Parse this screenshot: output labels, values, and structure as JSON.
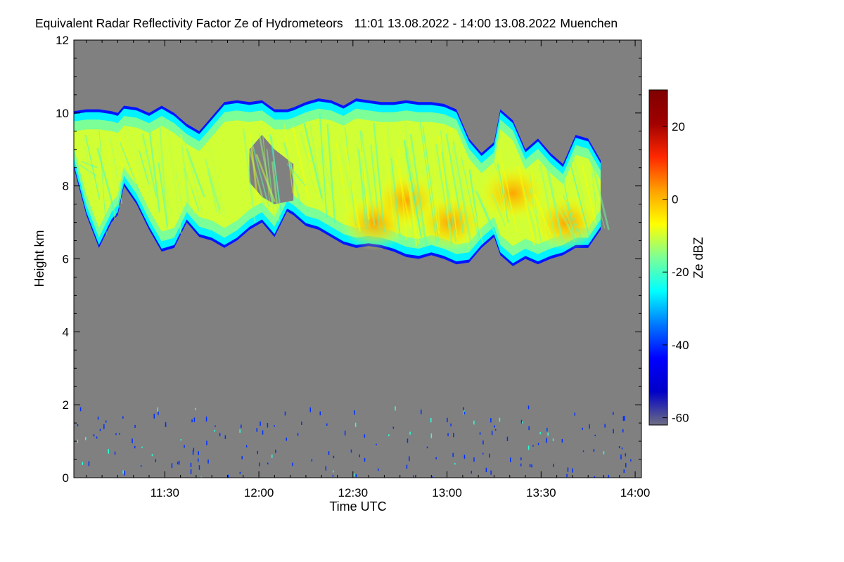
{
  "chart_data": {
    "type": "heatmap",
    "title": "Equivalent Radar Reflectivity Factor Ze of Hydrometeors",
    "time_range": "11:01 13.08.2022 - 14:00 13.08.2022",
    "location": "Muenchen",
    "xlabel": "Time UTC",
    "ylabel": "Height km",
    "xlim_minutes": [
      0,
      181
    ],
    "xlim_note": "minutes since 11:01 UTC",
    "x_ticks": [
      {
        "label": "11:30",
        "value": 29
      },
      {
        "label": "12:00",
        "value": 59
      },
      {
        "label": "12:30",
        "value": 89
      },
      {
        "label": "13:00",
        "value": 119
      },
      {
        "label": "13:30",
        "value": 149
      },
      {
        "label": "14:00",
        "value": 179
      }
    ],
    "ylim": [
      0,
      12
    ],
    "y_ticks": [
      0,
      2,
      4,
      6,
      8,
      10,
      12
    ],
    "background_color": "#808080",
    "colorbar": {
      "label": "Ze dBZ",
      "range": [
        -62,
        30
      ],
      "ticks": [
        20,
        0,
        -20,
        -40,
        -60
      ],
      "colors": [
        "#6e6e82",
        "#0000c8",
        "#0000ff",
        "#0078ff",
        "#00ffff",
        "#7cff96",
        "#ffff00",
        "#ffa000",
        "#ff2800",
        "#a00000",
        "#800000"
      ]
    },
    "cloud_layers": [
      {
        "name": "main anvil cloud",
        "x_minutes": [
          0,
          4,
          8,
          12,
          14,
          16,
          20,
          24,
          28,
          32,
          36,
          40,
          44,
          48,
          52,
          56,
          60,
          64,
          68,
          70,
          74,
          78,
          82,
          86,
          90,
          94,
          98,
          102,
          106,
          110,
          114,
          118,
          122,
          126,
          130,
          134,
          136,
          140,
          144,
          148,
          152,
          156,
          160,
          164,
          168
        ],
        "top_km": [
          10.05,
          10.1,
          10.1,
          10.05,
          10.0,
          10.2,
          10.15,
          10.0,
          10.2,
          10.0,
          9.7,
          9.5,
          9.9,
          10.3,
          10.35,
          10.3,
          10.35,
          10.1,
          10.1,
          10.15,
          10.3,
          10.4,
          10.35,
          10.2,
          10.4,
          10.35,
          10.3,
          10.3,
          10.35,
          10.3,
          10.3,
          10.25,
          10.1,
          9.3,
          8.9,
          9.2,
          10.1,
          9.8,
          9.0,
          9.3,
          8.9,
          8.6,
          9.4,
          9.3,
          8.7
        ],
        "base_km": [
          8.5,
          7.2,
          6.3,
          7.0,
          7.2,
          8.0,
          7.5,
          6.8,
          6.2,
          6.3,
          7.0,
          6.6,
          6.5,
          6.3,
          6.5,
          6.8,
          7.0,
          6.6,
          7.3,
          7.2,
          6.9,
          6.8,
          6.6,
          6.4,
          6.3,
          6.35,
          6.3,
          6.2,
          6.05,
          6.0,
          6.1,
          6.0,
          5.85,
          5.9,
          6.3,
          6.6,
          6.1,
          5.8,
          6.0,
          5.85,
          6.0,
          6.1,
          6.3,
          6.3,
          6.8
        ]
      },
      {
        "name": "cloud gap",
        "x_minutes": [
          56,
          60,
          64,
          70
        ],
        "top_km": [
          9.0,
          9.4,
          9.0,
          8.6
        ],
        "base_km": [
          8.1,
          7.7,
          7.5,
          7.6
        ]
      }
    ],
    "cores": [
      {
        "x_minutes": 96,
        "height_km": 7.0,
        "dbz": 3
      },
      {
        "x_minutes": 106,
        "height_km": 7.6,
        "dbz": 2
      },
      {
        "x_minutes": 120,
        "height_km": 7.0,
        "dbz": 0
      },
      {
        "x_minutes": 140,
        "height_km": 7.8,
        "dbz": 3
      },
      {
        "x_minutes": 157,
        "height_km": 7.0,
        "dbz": 2
      }
    ],
    "clutter_band_km": [
      0,
      2
    ],
    "clutter_dbz": -40
  }
}
